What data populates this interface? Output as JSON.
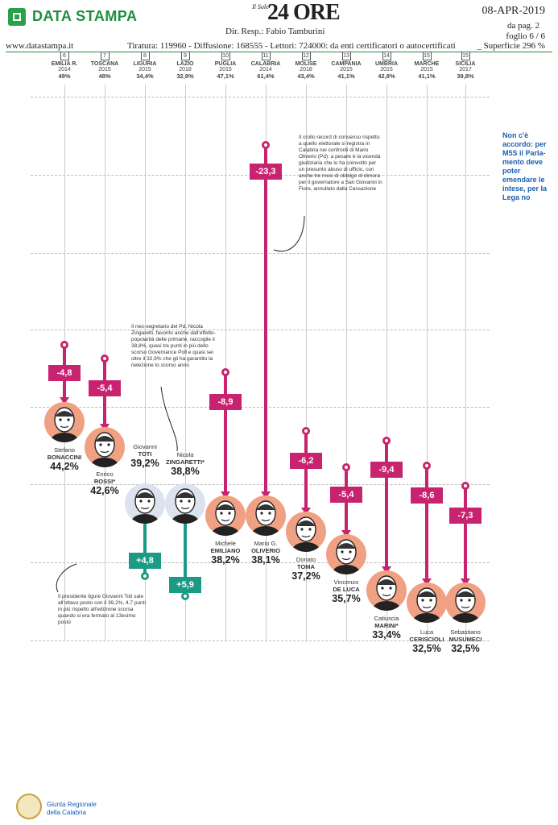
{
  "header": {
    "brand": "DATA STAMPA",
    "paper_small": "Il Sole",
    "paper_big": "24 ORE",
    "date": "08-APR-2019",
    "dir_resp": "Dir. Resp.:  Fabio Tamburini",
    "page": "da pag.  2",
    "sheet": "foglio 6 / 6",
    "site": "www.datastampa.it",
    "circulation": "Tiratura: 119960 - Diffusione: 168555 - Lettori: 724000: da enti certificatori o autocertificati",
    "area": "_ Superficie 296 %"
  },
  "columns": [
    {
      "num": "6",
      "region": "EMILIA R.",
      "year": "2014",
      "pct": "49%"
    },
    {
      "num": "7",
      "region": "TOSCANA",
      "year": "2015",
      "pct": "48%"
    },
    {
      "num": "8",
      "region": "LIGURIA",
      "year": "2015",
      "pct": "34,4%"
    },
    {
      "num": "9",
      "region": "LAZIO",
      "year": "2018",
      "pct": "32,9%"
    },
    {
      "num": "10",
      "region": "PUGLIA",
      "year": "2015",
      "pct": "47,1%"
    },
    {
      "num": "11",
      "region": "CALABRIA",
      "year": "2014",
      "pct": "61,4%"
    },
    {
      "num": "12",
      "region": "MOLISE",
      "year": "2018",
      "pct": "43,4%"
    },
    {
      "num": "13",
      "region": "CAMPANIA",
      "year": "2015",
      "pct": "41,1%"
    },
    {
      "num": "14",
      "region": "UMBRIA",
      "year": "2015",
      "pct": "42,8%"
    },
    {
      "num": "15",
      "region": "MARCHE",
      "year": "2015",
      "pct": "41,1%"
    },
    {
      "num": "15",
      "region": "SICILIA",
      "year": "2017",
      "pct": "39,8%"
    }
  ],
  "candidates": [
    {
      "first": "Stefano",
      "last": "BONACCINI",
      "pct": "44,2%",
      "delta": "-4,8"
    },
    {
      "first": "Enrico",
      "last": "ROSSI*",
      "pct": "42,6%",
      "delta": "-5,4"
    },
    {
      "first": "Giovanni",
      "last": "TOTI",
      "pct": "39,2%",
      "delta": "+4,8"
    },
    {
      "first": "Nicola",
      "last": "ZINGARETTI*",
      "pct": "38,8%",
      "delta": "+5,9"
    },
    {
      "first": "Michele",
      "last": "EMILIANO",
      "pct": "38,2%",
      "delta": "-8,9"
    },
    {
      "first": "Mario G.",
      "last": "OLIVERIO",
      "pct": "38,1%",
      "delta": "-23,3"
    },
    {
      "first": "Donato",
      "last": "TOMA",
      "pct": "37,2%",
      "delta": "-6,2"
    },
    {
      "first": "Vincenzo",
      "last": "DE LUCA",
      "pct": "35,7%",
      "delta": "-5,4"
    },
    {
      "first": "Catiuscia",
      "last": "MARINI*",
      "pct": "33,4%",
      "delta": "-9,4"
    },
    {
      "first": "Luca",
      "last": "CERISCIOLI",
      "pct": "32,5%",
      "delta": "-8,6"
    },
    {
      "first": "Sebastiano",
      "last": "MUSUMECI",
      "pct": "32,5%",
      "delta": "-7,3"
    }
  ],
  "notes": {
    "oliverio": "Il crollo record di consenso rispetto a quello elettorale si registra in Calabria nei confronti di Mario Oliverio (Pd): a pesare è la vicenda giudiziaria che lo ha coinvolto per un presunto abuso di ufficio, con anche tre mesi di obbligo di dimora per il governatore a San Giovanni in Fiore, annullato dalla Cassazione",
    "zingaretti": "Il neo-segretario del Pd, Nicola Zingaretti, favorito anche dall'effetto-popolarità delle primarie, raccoglie il 38,8%, quasi tre punti in più dello scorso Governance Poll e quasi sei oltre il 32,9% che gli ha garantito la rielezione lo scorso anno",
    "toti": "Il presidente ligure Giovanni Toti sale all'ottavo posto con il 39,2%, 4,7 punti in più rispetto all'edizione scorsa quando si era fermato al 13esimo posto"
  },
  "side_note": "Non c'è accordo: per M5S il Parla-mento deve poter emendare le intese, per la Lega no",
  "footer": {
    "line1": "Giunta Regionale",
    "line2": "della Calabria"
  },
  "colors": {
    "negative": "#c8236e",
    "positive": "#1b9a86",
    "brand": "#1f8e3e",
    "side": "#1b5fb0",
    "face_neg": "#f0a184",
    "face_pos": "#dde3ee"
  }
}
